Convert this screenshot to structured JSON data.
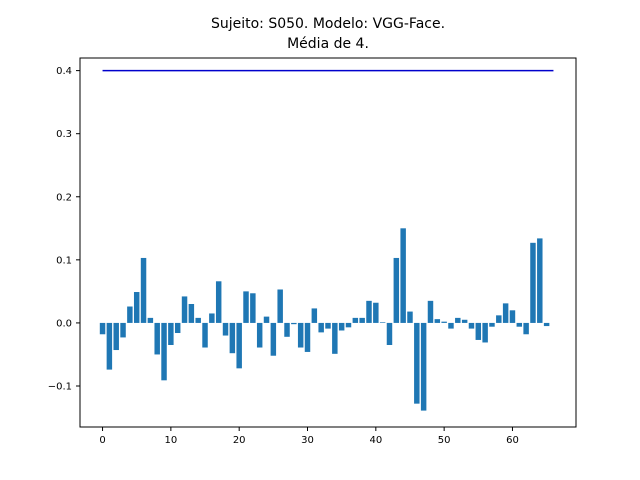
{
  "chart_data": {
    "type": "bar",
    "title": "Sujeito: S050. Modelo: VGG-Face.",
    "subtitle": "Média de 4.",
    "xlabel": "",
    "ylabel": "",
    "xlim": [
      -3.3,
      69.3
    ],
    "ylim": [
      -0.165,
      0.42
    ],
    "grid": false,
    "colors": {
      "bars": "#1f77b4",
      "line": "#0000cc"
    },
    "x_ticks": [
      {
        "value": 0,
        "label": "0"
      },
      {
        "value": 10,
        "label": "10"
      },
      {
        "value": 20,
        "label": "20"
      },
      {
        "value": 30,
        "label": "30"
      },
      {
        "value": 40,
        "label": "40"
      },
      {
        "value": 50,
        "label": "50"
      },
      {
        "value": 60,
        "label": "60"
      }
    ],
    "y_ticks": [
      {
        "value": -0.1,
        "label": "−0.1"
      },
      {
        "value": 0.0,
        "label": "0.0"
      },
      {
        "value": 0.1,
        "label": "0.1"
      },
      {
        "value": 0.2,
        "label": "0.2"
      },
      {
        "value": 0.3,
        "label": "0.3"
      },
      {
        "value": 0.4,
        "label": "0.4"
      }
    ],
    "bar_width": 0.8,
    "x": [
      0,
      1,
      2,
      3,
      4,
      5,
      6,
      7,
      8,
      9,
      10,
      11,
      12,
      13,
      14,
      15,
      16,
      17,
      18,
      19,
      20,
      21,
      22,
      23,
      24,
      25,
      26,
      27,
      28,
      29,
      30,
      31,
      32,
      33,
      34,
      35,
      36,
      37,
      38,
      39,
      40,
      41,
      42,
      43,
      44,
      45,
      46,
      47,
      48,
      49,
      50,
      51,
      52,
      53,
      54,
      55,
      56,
      57,
      58,
      59,
      60,
      61,
      62,
      63,
      64,
      65
    ],
    "values": [
      -0.018,
      -0.074,
      -0.043,
      -0.023,
      0.026,
      0.049,
      0.103,
      0.008,
      -0.05,
      -0.091,
      -0.035,
      -0.016,
      0.042,
      0.03,
      0.008,
      -0.039,
      0.015,
      0.066,
      -0.02,
      -0.048,
      -0.072,
      0.05,
      0.047,
      -0.039,
      0.01,
      -0.052,
      0.053,
      -0.022,
      -0.002,
      -0.039,
      -0.046,
      0.023,
      -0.015,
      -0.009,
      -0.049,
      -0.012,
      -0.007,
      0.008,
      0.008,
      0.035,
      0.032,
      0.001,
      -0.035,
      0.103,
      0.15,
      0.018,
      -0.128,
      -0.139,
      0.035,
      0.006,
      0.002,
      -0.009,
      0.008,
      0.005,
      -0.009,
      -0.027,
      -0.031,
      -0.006,
      0.012,
      0.031,
      0.02,
      -0.006,
      -0.018,
      0.127,
      0.134,
      -0.005
    ],
    "reference_line": {
      "x_start": 0,
      "x_end": 66,
      "value": 0.4
    }
  }
}
